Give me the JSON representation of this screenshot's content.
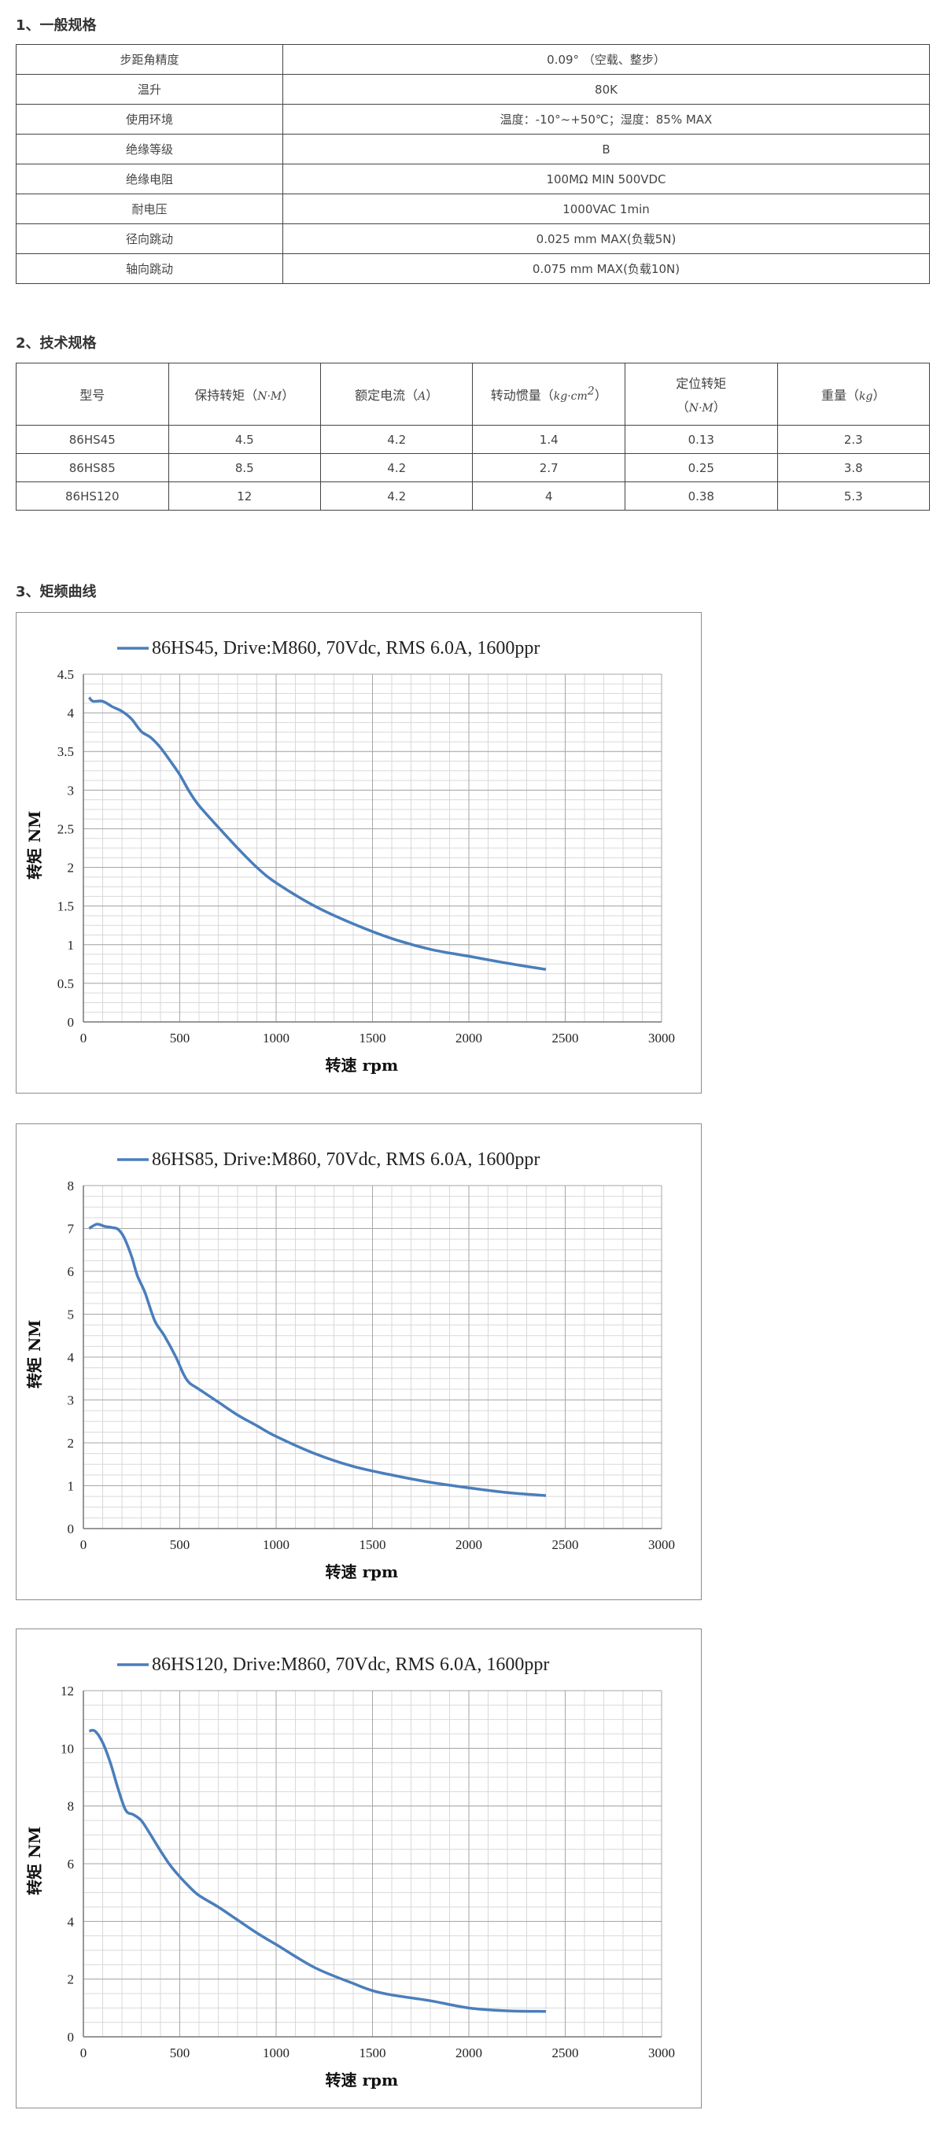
{
  "section1": {
    "title": "1、一般规格",
    "rows": [
      {
        "label": "步距角精度",
        "value": "0.09° （空载、整步）"
      },
      {
        "label": "温升",
        "value": "80K"
      },
      {
        "label": "使用环境",
        "value": "温度：-10°~+50℃；湿度：85% MAX"
      },
      {
        "label": "绝缘等级",
        "value": "B"
      },
      {
        "label": "绝缘电阻",
        "value": "100MΩ  MIN 500VDC"
      },
      {
        "label": "耐电压",
        "value": "1000VAC  1min"
      },
      {
        "label": "径向跳动",
        "value": "0.025 mm MAX(负载5N)"
      },
      {
        "label": "轴向跳动",
        "value": "0.075 mm MAX(负载10N)"
      }
    ]
  },
  "section2": {
    "title": "2、技术规格",
    "headers": {
      "model": "型号",
      "holding_torque": "保持转矩（",
      "holding_torque_unit": "N·M",
      "rated_current": "额定电流（",
      "rated_current_unit": "A",
      "inertia": "转动惯量（",
      "inertia_unit": "kg·cm",
      "inertia_exp": "2",
      "detent_torque_line1": "定位转矩",
      "detent_torque_unit": "N·M",
      "weight": "重量（",
      "weight_unit": "kg",
      "close_paren": "）"
    },
    "rows": [
      [
        "86HS45",
        "4.5",
        "4.2",
        "1.4",
        "0.13",
        "2.3"
      ],
      [
        "86HS85",
        "8.5",
        "4.2",
        "2.7",
        "0.25",
        "3.8"
      ],
      [
        "86HS120",
        "12",
        "4.2",
        "4",
        "0.38",
        "5.3"
      ]
    ]
  },
  "section3": {
    "title": "3、矩频曲线"
  },
  "chart_data": [
    {
      "type": "line",
      "title": "86HS45, Drive:M860, 70Vdc, RMS 6.0A, 1600ppr",
      "xlabel": "转速 rpm",
      "ylabel": "转矩 NM",
      "xlim": [
        0,
        3000
      ],
      "ylim": [
        0,
        4.5
      ],
      "xticks": [
        "0",
        "500",
        "1000",
        "1500",
        "2000",
        "2500",
        "3000"
      ],
      "yticks": [
        "0",
        "0.5",
        "1",
        "1.5",
        "2",
        "2.5",
        "3",
        "3.5",
        "4",
        "4.5"
      ],
      "grid": true,
      "legend": "top",
      "color": "#4a7ebb",
      "series": [
        {
          "name": "86HS45, Drive:M860, 70Vdc, RMS 6.0A, 1600ppr",
          "x": [
            30,
            50,
            100,
            150,
            200,
            250,
            300,
            350,
            400,
            450,
            500,
            550,
            600,
            700,
            800,
            900,
            1000,
            1200,
            1400,
            1600,
            1800,
            2000,
            2200,
            2400
          ],
          "y": [
            4.2,
            4.15,
            4.15,
            4.08,
            4.02,
            3.92,
            3.76,
            3.68,
            3.55,
            3.38,
            3.2,
            2.98,
            2.8,
            2.52,
            2.25,
            2.0,
            1.8,
            1.5,
            1.27,
            1.08,
            0.94,
            0.85,
            0.76,
            0.68
          ]
        }
      ]
    },
    {
      "type": "line",
      "title": "86HS85, Drive:M860, 70Vdc, RMS 6.0A, 1600ppr",
      "xlabel": "转速 rpm",
      "ylabel": "转矩 NM",
      "xlim": [
        0,
        3000
      ],
      "ylim": [
        0,
        8
      ],
      "xticks": [
        "0",
        "500",
        "1000",
        "1500",
        "2000",
        "2500",
        "3000"
      ],
      "yticks": [
        "0",
        "1",
        "2",
        "3",
        "4",
        "5",
        "6",
        "7",
        "8"
      ],
      "grid": true,
      "legend": "top",
      "color": "#4a7ebb",
      "series": [
        {
          "name": "86HS85, Drive:M860, 70Vdc, RMS 6.0A, 1600ppr",
          "x": [
            30,
            70,
            110,
            150,
            180,
            210,
            250,
            280,
            320,
            370,
            420,
            480,
            520,
            550,
            600,
            700,
            800,
            900,
            1000,
            1200,
            1400,
            1600,
            1800,
            2000,
            2200,
            2400
          ],
          "y": [
            7.0,
            7.1,
            7.05,
            7.02,
            6.98,
            6.8,
            6.35,
            5.9,
            5.5,
            4.85,
            4.5,
            4.0,
            3.6,
            3.4,
            3.25,
            2.95,
            2.65,
            2.4,
            2.15,
            1.75,
            1.45,
            1.25,
            1.08,
            0.95,
            0.84,
            0.77
          ]
        }
      ]
    },
    {
      "type": "line",
      "title": "86HS120, Drive:M860, 70Vdc, RMS 6.0A, 1600ppr",
      "xlabel": "转速 rpm",
      "ylabel": "转矩 NM",
      "xlim": [
        0,
        3000
      ],
      "ylim": [
        0,
        12
      ],
      "xticks": [
        "0",
        "500",
        "1000",
        "1500",
        "2000",
        "2500",
        "3000"
      ],
      "yticks": [
        "0",
        "2",
        "4",
        "6",
        "8",
        "10",
        "12"
      ],
      "grid": true,
      "legend": "top",
      "color": "#4a7ebb",
      "series": [
        {
          "name": "86HS120, Drive:M860, 70Vdc, RMS 6.0A, 1600ppr",
          "x": [
            30,
            60,
            100,
            140,
            180,
            220,
            260,
            300,
            340,
            400,
            450,
            500,
            550,
            600,
            700,
            800,
            900,
            1000,
            1200,
            1400,
            1500,
            1600,
            1800,
            2000,
            2200,
            2400
          ],
          "y": [
            10.6,
            10.6,
            10.2,
            9.5,
            8.6,
            7.85,
            7.7,
            7.5,
            7.1,
            6.45,
            5.95,
            5.55,
            5.2,
            4.9,
            4.5,
            4.05,
            3.6,
            3.2,
            2.4,
            1.85,
            1.6,
            1.45,
            1.25,
            1.0,
            0.9,
            0.88
          ]
        }
      ]
    }
  ]
}
